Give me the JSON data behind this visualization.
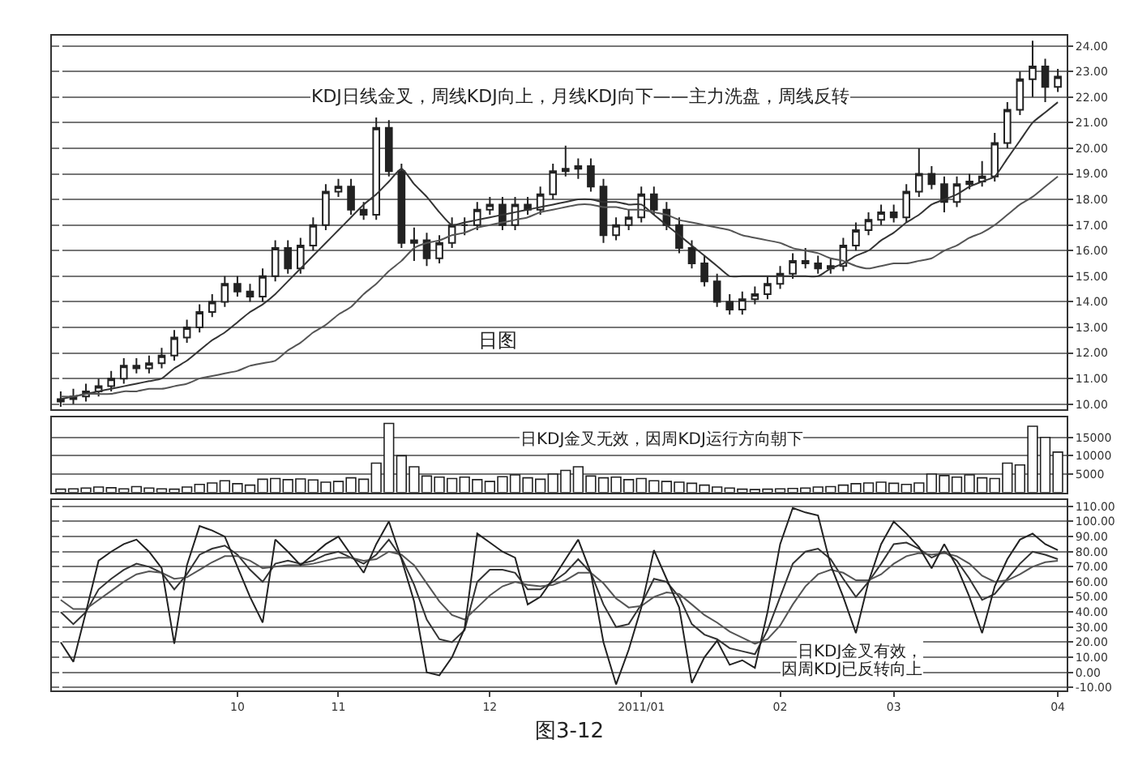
{
  "chart_data": [
    {
      "type": "candlestick",
      "categories": [
        null,
        null,
        null,
        null,
        null,
        null,
        null,
        null,
        null,
        null,
        null,
        null,
        null,
        null,
        "10",
        null,
        null,
        null,
        null,
        null,
        null,
        null,
        "11",
        null,
        null,
        null,
        null,
        null,
        null,
        null,
        null,
        null,
        null,
        null,
        "12",
        null,
        null,
        null,
        null,
        null,
        null,
        null,
        null,
        null,
        null,
        null,
        "2011/01",
        null,
        null,
        null,
        null,
        null,
        null,
        null,
        null,
        null,
        null,
        "02",
        null,
        null,
        null,
        null,
        null,
        null,
        null,
        null,
        "03",
        null,
        null,
        null,
        null,
        null,
        null,
        null,
        null,
        null,
        null,
        null,
        null,
        "04"
      ],
      "ohlc": [
        [
          10.1,
          10.5,
          9.9,
          10.2
        ],
        [
          10.2,
          10.6,
          10.0,
          10.3
        ],
        [
          10.3,
          10.8,
          10.1,
          10.5
        ],
        [
          10.5,
          11.0,
          10.3,
          10.7
        ],
        [
          10.7,
          11.3,
          10.5,
          11.0
        ],
        [
          11.0,
          11.8,
          10.8,
          11.5
        ],
        [
          11.5,
          11.8,
          11.2,
          11.4
        ],
        [
          11.4,
          11.9,
          11.2,
          11.6
        ],
        [
          11.6,
          12.2,
          11.4,
          11.9
        ],
        [
          11.9,
          12.9,
          11.7,
          12.6
        ],
        [
          12.6,
          13.3,
          12.4,
          13.0
        ],
        [
          13.0,
          13.9,
          12.8,
          13.6
        ],
        [
          13.6,
          14.3,
          13.4,
          14.0
        ],
        [
          14.0,
          15.0,
          13.8,
          14.7
        ],
        [
          14.7,
          15.0,
          14.2,
          14.4
        ],
        [
          14.4,
          14.7,
          14.0,
          14.2
        ],
        [
          14.2,
          15.3,
          14.0,
          15.0
        ],
        [
          15.0,
          16.4,
          14.8,
          16.1
        ],
        [
          16.1,
          16.4,
          15.1,
          15.3
        ],
        [
          15.3,
          16.5,
          15.1,
          16.2
        ],
        [
          16.2,
          17.3,
          16.0,
          17.0
        ],
        [
          17.0,
          18.6,
          16.8,
          18.3
        ],
        [
          18.3,
          18.8,
          18.1,
          18.5
        ],
        [
          18.5,
          18.8,
          17.4,
          17.6
        ],
        [
          17.6,
          17.9,
          17.2,
          17.4
        ],
        [
          17.4,
          21.2,
          17.2,
          20.8
        ],
        [
          20.8,
          21.1,
          18.9,
          19.1
        ],
        [
          19.1,
          19.4,
          16.1,
          16.3
        ],
        [
          16.3,
          16.9,
          15.6,
          16.4
        ],
        [
          16.4,
          16.7,
          15.4,
          15.7
        ],
        [
          15.7,
          16.6,
          15.5,
          16.3
        ],
        [
          16.3,
          17.3,
          16.1,
          17.0
        ],
        [
          17.0,
          17.3,
          16.6,
          17.0
        ],
        [
          17.0,
          17.9,
          16.8,
          17.6
        ],
        [
          17.6,
          18.1,
          17.4,
          17.8
        ],
        [
          17.8,
          18.1,
          16.8,
          17.0
        ],
        [
          17.0,
          18.1,
          16.8,
          17.8
        ],
        [
          17.8,
          18.1,
          17.4,
          17.6
        ],
        [
          17.6,
          18.5,
          17.4,
          18.2
        ],
        [
          18.2,
          19.4,
          18.0,
          19.1
        ],
        [
          19.1,
          20.1,
          18.9,
          19.2
        ],
        [
          19.2,
          19.6,
          18.8,
          19.3
        ],
        [
          19.3,
          19.6,
          18.3,
          18.5
        ],
        [
          18.5,
          18.8,
          16.3,
          16.6
        ],
        [
          16.6,
          17.3,
          16.4,
          17.0
        ],
        [
          17.0,
          17.6,
          16.8,
          17.3
        ],
        [
          17.3,
          18.5,
          17.1,
          18.2
        ],
        [
          18.2,
          18.5,
          17.4,
          17.6
        ],
        [
          17.6,
          17.9,
          16.8,
          17.0
        ],
        [
          17.0,
          17.3,
          15.9,
          16.1
        ],
        [
          16.1,
          16.4,
          15.3,
          15.5
        ],
        [
          15.5,
          15.8,
          14.6,
          14.8
        ],
        [
          14.8,
          15.1,
          13.8,
          14.0
        ],
        [
          14.0,
          14.3,
          13.5,
          13.7
        ],
        [
          13.7,
          14.4,
          13.5,
          14.1
        ],
        [
          14.1,
          14.6,
          13.9,
          14.3
        ],
        [
          14.3,
          15.0,
          14.1,
          14.7
        ],
        [
          14.7,
          15.4,
          14.5,
          15.1
        ],
        [
          15.1,
          15.9,
          14.9,
          15.6
        ],
        [
          15.6,
          16.1,
          15.3,
          15.5
        ],
        [
          15.5,
          15.8,
          15.1,
          15.3
        ],
        [
          15.3,
          15.7,
          15.1,
          15.4
        ],
        [
          15.4,
          16.5,
          15.2,
          16.2
        ],
        [
          16.2,
          17.1,
          16.0,
          16.8
        ],
        [
          16.8,
          17.5,
          16.6,
          17.2
        ],
        [
          17.2,
          17.8,
          17.0,
          17.5
        ],
        [
          17.5,
          17.8,
          17.1,
          17.3
        ],
        [
          17.3,
          18.6,
          17.1,
          18.3
        ],
        [
          18.3,
          20.0,
          18.1,
          19.0
        ],
        [
          19.0,
          19.3,
          18.4,
          18.6
        ],
        [
          18.6,
          18.9,
          17.5,
          17.9
        ],
        [
          17.9,
          18.9,
          17.7,
          18.6
        ],
        [
          18.6,
          19.0,
          18.4,
          18.7
        ],
        [
          18.7,
          19.5,
          18.5,
          18.9
        ],
        [
          18.9,
          20.6,
          18.7,
          20.2
        ],
        [
          20.2,
          21.8,
          20.0,
          21.5
        ],
        [
          21.5,
          23.0,
          21.3,
          22.7
        ],
        [
          22.7,
          24.2,
          22.0,
          23.2
        ],
        [
          23.2,
          23.5,
          21.8,
          22.4
        ],
        [
          22.4,
          23.1,
          22.2,
          22.8
        ]
      ],
      "series": [
        {
          "type": "line",
          "color": "#333333",
          "values": [
            10.2,
            10.3,
            10.4,
            10.5,
            10.6,
            10.7,
            10.8,
            10.9,
            11.0,
            11.4,
            11.7,
            12.1,
            12.5,
            12.8,
            13.2,
            13.6,
            13.9,
            14.3,
            14.8,
            15.3,
            15.8,
            16.3,
            16.8,
            17.3,
            17.8,
            18.2,
            18.7,
            19.2,
            18.6,
            18.1,
            17.5,
            17.0,
            17.1,
            17.2,
            17.3,
            17.4,
            17.5,
            17.6,
            17.7,
            17.8,
            17.9,
            18.0,
            18.0,
            17.9,
            17.9,
            17.8,
            17.8,
            17.4,
            17.0,
            16.6,
            16.2,
            15.8,
            15.4,
            15.0,
            15.0,
            15.0,
            15.0,
            15.0,
            15.0,
            15.0,
            15.0,
            15.3,
            15.5,
            15.8,
            16.0,
            16.4,
            16.7,
            17.1,
            17.4,
            17.8,
            18.0,
            18.2,
            18.5,
            18.7,
            18.9,
            19.6,
            20.3,
            21.0,
            21.4,
            21.8
          ]
        },
        {
          "type": "line",
          "color": "#555555",
          "values": [
            10.3,
            10.3,
            10.4,
            10.4,
            10.4,
            10.5,
            10.5,
            10.6,
            10.6,
            10.7,
            10.8,
            11.0,
            11.1,
            11.2,
            11.3,
            11.5,
            11.6,
            11.7,
            12.1,
            12.4,
            12.8,
            13.1,
            13.5,
            13.8,
            14.3,
            14.7,
            15.2,
            15.6,
            16.1,
            16.3,
            16.4,
            16.6,
            16.7,
            16.9,
            17.0,
            17.1,
            17.2,
            17.3,
            17.5,
            17.6,
            17.7,
            17.8,
            17.8,
            17.7,
            17.7,
            17.6,
            17.6,
            17.5,
            17.4,
            17.2,
            17.1,
            17.0,
            16.9,
            16.8,
            16.6,
            16.5,
            16.4,
            16.3,
            16.1,
            16.0,
            15.9,
            15.7,
            15.6,
            15.4,
            15.3,
            15.4,
            15.5,
            15.5,
            15.6,
            15.7,
            16.0,
            16.2,
            16.5,
            16.7,
            17.0,
            17.4,
            17.8,
            18.1,
            18.5,
            18.9
          ]
        }
      ],
      "ylim": [
        9.8,
        24.4
      ],
      "yticks": [
        {
          "value": 10,
          "label": "10.00"
        },
        {
          "value": 11,
          "label": "11.00"
        },
        {
          "value": 12,
          "label": "12.00"
        },
        {
          "value": 13,
          "label": "13.00"
        },
        {
          "value": 14,
          "label": "14.00"
        },
        {
          "value": 15,
          "label": "15.00"
        },
        {
          "value": 16,
          "label": "16.00"
        },
        {
          "value": 17,
          "label": "17.00"
        },
        {
          "value": 18,
          "label": "18.00"
        },
        {
          "value": 19,
          "label": "19.00"
        },
        {
          "value": 20,
          "label": "20.00"
        },
        {
          "value": 21,
          "label": "21.00"
        },
        {
          "value": 22,
          "label": "22.00"
        },
        {
          "value": 23,
          "label": "23.00"
        },
        {
          "value": 24,
          "label": "24.00"
        }
      ],
      "grid": "y",
      "tick_labels": "y",
      "annotations": [
        "KDJ日线金叉，周线KDJ向上，月线KDJ向下——主力洗盘，周线反转",
        "日图"
      ]
    },
    {
      "type": "bar",
      "categories": [
        null,
        null,
        null,
        null,
        null,
        null,
        null,
        null,
        null,
        null,
        null,
        null,
        null,
        null,
        "10",
        null,
        null,
        null,
        null,
        null,
        null,
        null,
        "11",
        null,
        null,
        null,
        null,
        null,
        null,
        null,
        null,
        null,
        null,
        null,
        "12",
        null,
        null,
        null,
        null,
        null,
        null,
        null,
        null,
        null,
        null,
        null,
        "2011/01",
        null,
        null,
        null,
        null,
        null,
        null,
        null,
        null,
        null,
        null,
        "02",
        null,
        null,
        null,
        null,
        null,
        null,
        null,
        null,
        "03",
        null,
        null,
        null,
        null,
        null,
        null,
        null,
        null,
        null,
        null,
        null,
        null,
        "04"
      ],
      "values": [
        900,
        1000,
        1200,
        1500,
        1300,
        1000,
        1600,
        1200,
        1000,
        900,
        1500,
        2200,
        2600,
        3200,
        2400,
        2000,
        3600,
        3800,
        3500,
        3700,
        3400,
        2800,
        3000,
        4000,
        3600,
        8000,
        18800,
        10000,
        7000,
        4500,
        4200,
        3800,
        4200,
        3500,
        3000,
        4300,
        4800,
        4000,
        3600,
        5000,
        6000,
        7000,
        4500,
        4000,
        4200,
        3500,
        3800,
        3200,
        3000,
        2800,
        2500,
        2000,
        1500,
        1200,
        900,
        800,
        900,
        1000,
        1100,
        1200,
        1500,
        1600,
        2000,
        2400,
        2600,
        2800,
        2500,
        2200,
        2600,
        5000,
        4600,
        4200,
        4800,
        4000,
        3800,
        8000,
        7500,
        18000,
        15000,
        11000
      ],
      "ylim": [
        0,
        20500
      ],
      "yticks": [
        5000,
        10000,
        15000
      ],
      "grid": "y",
      "tick_labels": "y",
      "annotations": [
        "日KDJ金叉无效，因周KDJ运行方向朝下"
      ]
    },
    {
      "type": "line",
      "categories": [
        null,
        null,
        null,
        null,
        null,
        null,
        null,
        null,
        null,
        null,
        null,
        null,
        null,
        null,
        "10",
        null,
        null,
        null,
        null,
        null,
        null,
        null,
        "11",
        null,
        null,
        null,
        null,
        null,
        null,
        null,
        null,
        null,
        null,
        null,
        "12",
        null,
        null,
        null,
        null,
        null,
        null,
        null,
        null,
        null,
        null,
        null,
        "2011/01",
        null,
        null,
        null,
        null,
        null,
        null,
        null,
        null,
        null,
        null,
        "02",
        null,
        null,
        null,
        null,
        null,
        null,
        null,
        null,
        "03",
        null,
        null,
        null,
        null,
        null,
        null,
        null,
        null,
        null,
        null,
        null,
        null,
        "04"
      ],
      "series": [
        {
          "color": "#333333",
          "values": [
            40,
            32,
            40,
            55,
            62,
            68,
            72,
            70,
            66,
            55,
            65,
            78,
            82,
            84,
            78,
            68,
            60,
            72,
            74,
            72,
            74,
            78,
            80,
            76,
            72,
            78,
            88,
            76,
            58,
            35,
            22,
            20,
            28,
            60,
            68,
            68,
            66,
            55,
            55,
            60,
            66,
            75,
            66,
            45,
            30,
            32,
            45,
            62,
            60,
            50,
            32,
            25,
            22,
            16,
            14,
            12,
            28,
            50,
            72,
            80,
            82,
            75,
            62,
            50,
            60,
            72,
            85,
            86,
            82,
            76,
            80,
            74,
            62,
            48,
            52,
            62,
            72,
            80,
            78,
            75
          ]
        },
        {
          "color": "#555555",
          "values": [
            48,
            42,
            42,
            48,
            54,
            60,
            65,
            67,
            66,
            62,
            63,
            68,
            73,
            77,
            77,
            74,
            69,
            70,
            71,
            71,
            72,
            74,
            76,
            76,
            74,
            75,
            80,
            78,
            71,
            59,
            47,
            38,
            35,
            43,
            51,
            57,
            60,
            58,
            57,
            58,
            61,
            66,
            66,
            59,
            49,
            43,
            44,
            50,
            53,
            52,
            45,
            38,
            33,
            27,
            23,
            19,
            22,
            31,
            45,
            57,
            65,
            68,
            66,
            61,
            61,
            65,
            72,
            77,
            79,
            78,
            79,
            77,
            72,
            64,
            60,
            61,
            65,
            70,
            73,
            74
          ]
        },
        {
          "color": "#222222",
          "values": [
            20,
            7,
            40,
            74,
            80,
            85,
            88,
            80,
            69,
            19,
            71,
            97,
            94,
            90,
            70,
            50,
            33,
            88,
            80,
            71,
            78,
            85,
            90,
            78,
            66,
            85,
            100,
            75,
            47,
            0,
            -2,
            10,
            29,
            92,
            86,
            80,
            76,
            45,
            50,
            62,
            75,
            88,
            66,
            20,
            -8,
            15,
            43,
            81,
            62,
            43,
            -7,
            10,
            21,
            5,
            8,
            3,
            40,
            85,
            109,
            106,
            104,
            71,
            50,
            26,
            60,
            85,
            100,
            92,
            83,
            69,
            85,
            70,
            50,
            26,
            57,
            75,
            88,
            92,
            85,
            81
          ]
        }
      ],
      "ylim": [
        -12,
        114
      ],
      "yticks": [
        {
          "value": -10,
          "label": "-10.00"
        },
        {
          "value": 0,
          "label": "0.00"
        },
        {
          "value": 10,
          "label": "10.00"
        },
        {
          "value": 20,
          "label": "20.00"
        },
        {
          "value": 30,
          "label": "30.00"
        },
        {
          "value": 40,
          "label": "40.00"
        },
        {
          "value": 50,
          "label": "50.00"
        },
        {
          "value": 60,
          "label": "60.00"
        },
        {
          "value": 70,
          "label": "70.00"
        },
        {
          "value": 80,
          "label": "80.00"
        },
        {
          "value": 90,
          "label": "90.00"
        },
        {
          "value": 100,
          "label": "100.00"
        },
        {
          "value": 110,
          "label": "110.00"
        }
      ],
      "grid": "y",
      "annotations": [
        "日KDJ金叉有效，",
        "因周KDJ已反转向上",
        "图3-12"
      ]
    }
  ]
}
